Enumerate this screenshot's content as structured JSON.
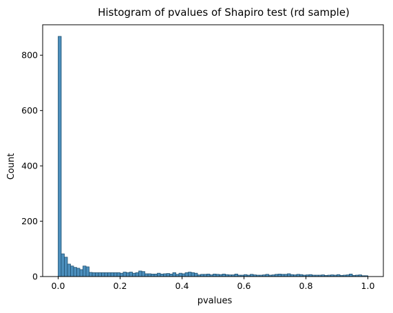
{
  "chart_data": {
    "type": "bar",
    "title": "Histogram of pvalues of Shapiro test (rd sample)",
    "xlabel": "pvalues",
    "ylabel": "Count",
    "xlim": [
      -0.05,
      1.05
    ],
    "ylim": [
      0,
      910
    ],
    "xticks": [
      0.0,
      0.2,
      0.4,
      0.6,
      0.8,
      1.0
    ],
    "xtick_labels": [
      "0.0",
      "0.2",
      "0.4",
      "0.6",
      "0.8",
      "1.0"
    ],
    "yticks": [
      0,
      200,
      400,
      600,
      800
    ],
    "ytick_labels": [
      "0",
      "200",
      "400",
      "600",
      "800"
    ],
    "grid": false,
    "bin_start": 0.0,
    "bin_width": 0.01,
    "bar_color": "#4c8fbd",
    "edge_color": "#1f4f6e",
    "values": [
      868,
      82,
      70,
      45,
      38,
      33,
      30,
      25,
      38,
      35,
      15,
      14,
      14,
      14,
      14,
      14,
      14,
      14,
      14,
      14,
      12,
      16,
      14,
      16,
      12,
      14,
      20,
      18,
      10,
      10,
      9,
      9,
      12,
      9,
      10,
      11,
      9,
      14,
      8,
      12,
      10,
      14,
      16,
      14,
      12,
      6,
      8,
      8,
      9,
      6,
      9,
      8,
      7,
      9,
      7,
      6,
      6,
      9,
      5,
      5,
      7,
      5,
      8,
      6,
      5,
      5,
      6,
      8,
      5,
      6,
      8,
      9,
      8,
      8,
      10,
      7,
      6,
      8,
      7,
      5,
      6,
      7,
      5,
      5,
      5,
      6,
      4,
      5,
      6,
      5,
      7,
      4,
      5,
      6,
      9,
      4,
      5,
      6,
      3,
      3
    ]
  }
}
